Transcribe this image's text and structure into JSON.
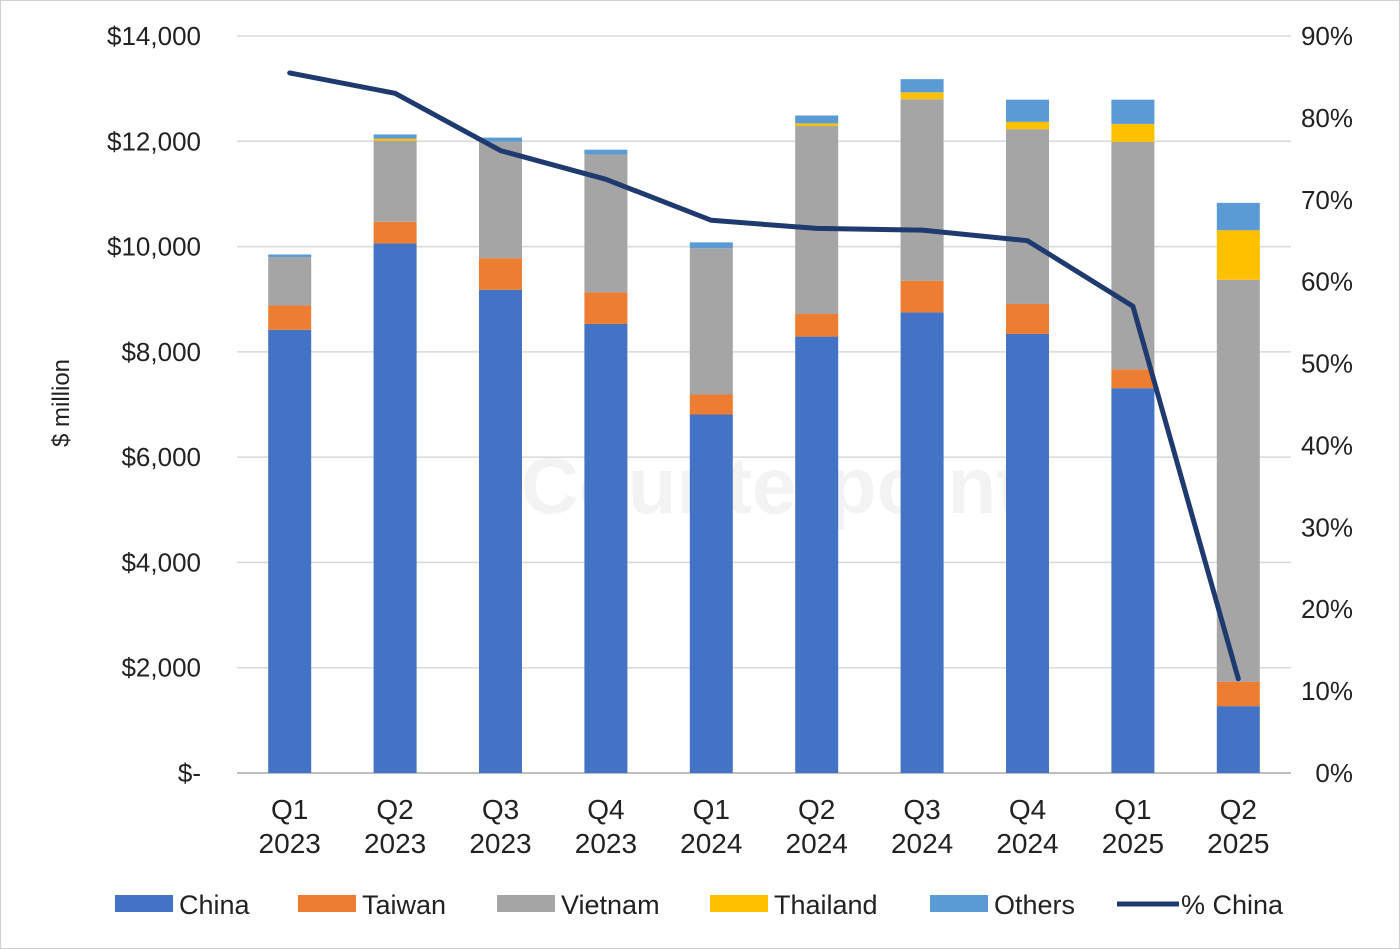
{
  "chart_data": {
    "type": "bar",
    "stacked": true,
    "watermark": "Counterpoint",
    "ylabel": "$ million",
    "ylim": [
      0,
      14000
    ],
    "y_ticks": [
      "$-",
      "$2,000",
      "$4,000",
      "$6,000",
      "$8,000",
      "$10,000",
      "$12,000",
      "$14,000"
    ],
    "y2lim": [
      0,
      90
    ],
    "y2_ticks": [
      "0%",
      "10%",
      "20%",
      "30%",
      "40%",
      "50%",
      "60%",
      "70%",
      "80%",
      "90%"
    ],
    "grid": true,
    "legend_position": "bottom",
    "categories": [
      {
        "q": "Q1",
        "year": "2023"
      },
      {
        "q": "Q2",
        "year": "2023"
      },
      {
        "q": "Q3",
        "year": "2023"
      },
      {
        "q": "Q4",
        "year": "2023"
      },
      {
        "q": "Q1",
        "year": "2024"
      },
      {
        "q": "Q2",
        "year": "2024"
      },
      {
        "q": "Q3",
        "year": "2024"
      },
      {
        "q": "Q4",
        "year": "2024"
      },
      {
        "q": "Q1",
        "year": "2025"
      },
      {
        "q": "Q2",
        "year": "2025"
      }
    ],
    "series": [
      {
        "name": "China",
        "color": "#4472C4",
        "values": [
          8420,
          10060,
          9180,
          8530,
          6810,
          8290,
          8750,
          8340,
          7310,
          1270
        ]
      },
      {
        "name": "Taiwan",
        "color": "#ED7D31",
        "values": [
          460,
          410,
          600,
          600,
          380,
          430,
          600,
          570,
          360,
          460
        ]
      },
      {
        "name": "Vietnam",
        "color": "#A5A5A5",
        "values": [
          920,
          1540,
          2210,
          2620,
          2780,
          3570,
          3450,
          3320,
          4320,
          7640
        ]
      },
      {
        "name": "Thailand",
        "color": "#FFC000",
        "values": [
          0,
          40,
          0,
          0,
          0,
          50,
          130,
          140,
          340,
          940
        ]
      },
      {
        "name": "Others",
        "color": "#5B9BD5",
        "values": [
          50,
          80,
          80,
          90,
          110,
          150,
          250,
          420,
          460,
          520
        ]
      }
    ],
    "line_series": {
      "name": "% China",
      "color": "#1F3A6E",
      "axis": "right",
      "values": [
        85.5,
        83,
        76,
        72.5,
        67.5,
        66.5,
        66.3,
        65,
        57,
        11.5
      ]
    }
  }
}
